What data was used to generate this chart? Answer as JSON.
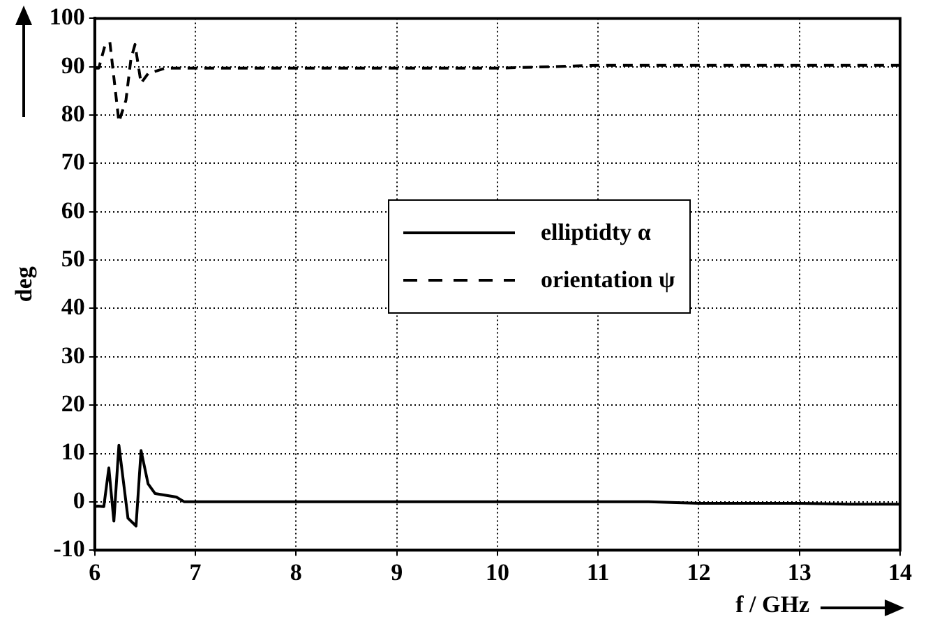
{
  "chart_data": {
    "type": "line",
    "xlabel": "f / GHz",
    "ylabel": "deg",
    "xlim": [
      6,
      14
    ],
    "xticks": [
      6,
      7,
      8,
      9,
      10,
      11,
      12,
      13,
      14
    ],
    "ylim": [
      -10,
      100
    ],
    "yticks": [
      -10,
      0,
      10,
      20,
      30,
      40,
      50,
      60,
      70,
      80,
      90,
      100
    ],
    "grid": true,
    "legend": "center",
    "marker": "none",
    "series": [
      {
        "name": "elliptidty α",
        "color": "#000000",
        "line_style": "solid",
        "x": [
          6.0,
          6.03,
          6.09,
          6.14,
          6.19,
          6.24,
          6.33,
          6.41,
          6.46,
          6.53,
          6.6,
          6.81,
          6.89,
          8,
          9,
          10,
          11,
          11.5,
          12,
          13,
          13.5,
          14
        ],
        "values": [
          -1,
          -0.9,
          -1,
          7,
          -4,
          11.7,
          -3.4,
          -5,
          10.6,
          3.7,
          1.7,
          1,
          0,
          0,
          0,
          0,
          0,
          0,
          -0.3,
          -0.3,
          -0.5,
          -0.5
        ]
      },
      {
        "name": "orientation ψ",
        "color": "#000000",
        "line_style": "dashed",
        "x": [
          6.0,
          6.04,
          6.1,
          6.15,
          6.24,
          6.31,
          6.36,
          6.4,
          6.46,
          6.53,
          6.7,
          8,
          9,
          10,
          11,
          12,
          13,
          14
        ],
        "values": [
          89.7,
          89.7,
          94.3,
          95.1,
          78.6,
          83.1,
          91.7,
          94.6,
          86.6,
          88.6,
          89.7,
          89.7,
          89.7,
          89.7,
          90.3,
          90.3,
          90.3,
          90.3
        ]
      }
    ]
  }
}
